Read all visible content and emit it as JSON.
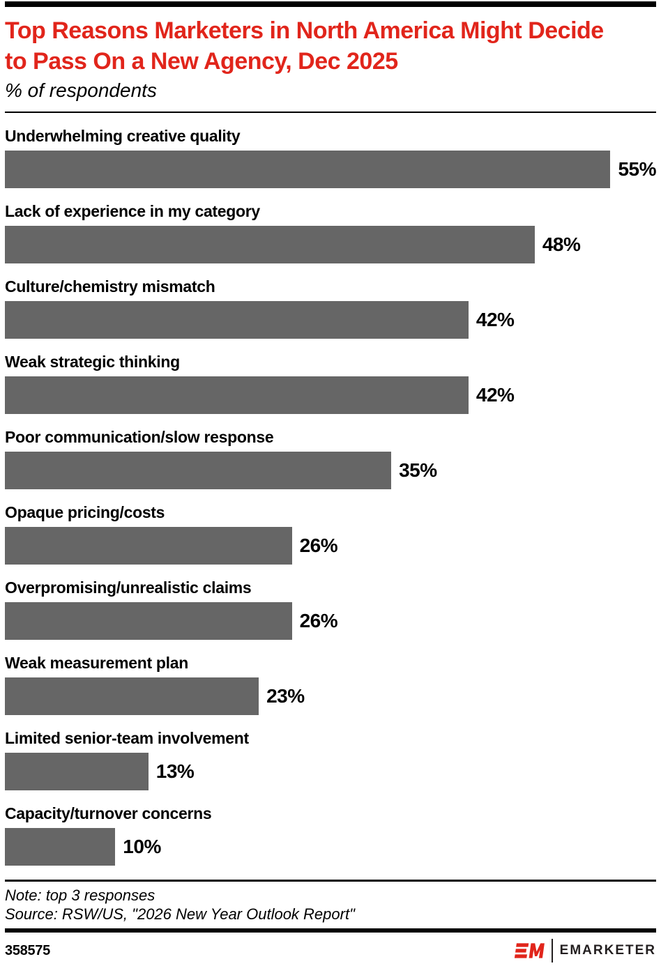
{
  "header": {
    "title": "Top Reasons Marketers in North America Might Decide to Pass On a New Agency, Dec 2025",
    "subtitle": "% of respondents",
    "title_color": "#e1251b"
  },
  "chart_data": {
    "type": "bar",
    "orientation": "horizontal",
    "unit": "%",
    "title": "Top Reasons Marketers in North America Might Decide to Pass On a New Agency, Dec 2025",
    "subtitle": "% of respondents",
    "categories": [
      "Underwhelming creative quality",
      "Lack of experience in my category",
      "Culture/chemistry mismatch",
      "Weak strategic thinking",
      "Poor communication/slow response",
      "Opaque pricing/costs",
      "Overpromising/unrealistic claims",
      "Weak measurement plan",
      "Limited senior-team involvement",
      "Capacity/turnover concerns"
    ],
    "values": [
      55,
      48,
      42,
      42,
      35,
      26,
      26,
      23,
      13,
      10
    ],
    "value_labels": [
      "55%",
      "48%",
      "42%",
      "42%",
      "35%",
      "26%",
      "26%",
      "23%",
      "13%",
      "10%"
    ],
    "xlim": [
      0,
      59
    ],
    "bar_color": "#666666",
    "grid": false,
    "legend": false,
    "value_label_position": "right-of-bar"
  },
  "footer": {
    "note": "Note: top 3 responses",
    "source": "Source: RSW/US, \"2026 New Year Outlook Report\"",
    "chart_id": "358575",
    "brand_name": "EMARKETER"
  },
  "colors": {
    "accent_red": "#e1251b",
    "bar_gray": "#666666",
    "rule_black": "#000000"
  }
}
